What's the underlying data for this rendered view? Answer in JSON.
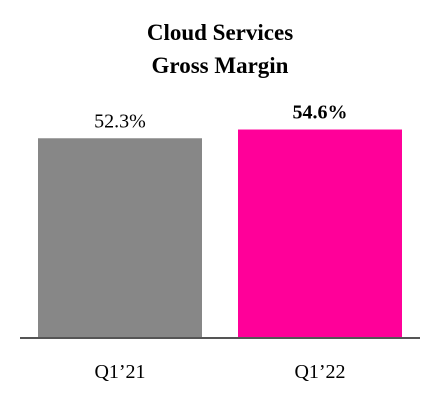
{
  "chart_data": {
    "type": "bar",
    "title_lines": [
      "Cloud Services",
      "Gross Margin"
    ],
    "categories": [
      "Q1’21",
      "Q1’22"
    ],
    "values": [
      52.3,
      54.6
    ],
    "value_labels": [
      "52.3%",
      "54.6%"
    ],
    "highlight_index": 1,
    "colors": [
      "#878787",
      "#ff0099"
    ],
    "axis_color": "#555555",
    "ylim": [
      0,
      60
    ],
    "grid": false,
    "legend": "none"
  }
}
